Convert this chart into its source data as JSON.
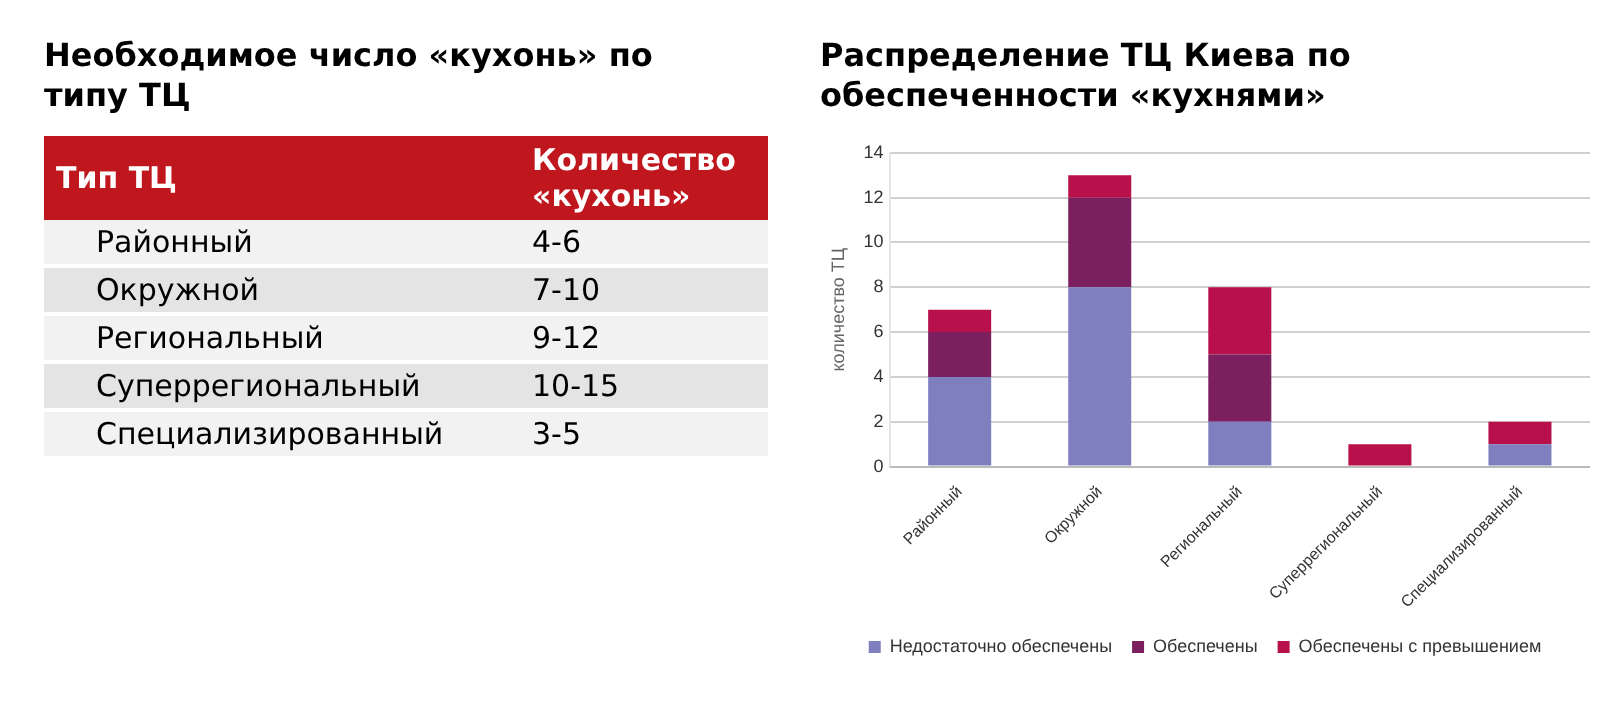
{
  "chart_data": [
    {
      "type": "other",
      "title": "Необходимое число «кухонь» по типу ТЦ",
      "xlabel": "Тип ТЦ",
      "ylabel": "Количество «кухонь»",
      "categories": [
        "Районный",
        "Окружной",
        "Региональный",
        "Суперрегиональный",
        "Специализированный"
      ],
      "value_labels": [
        "4-6",
        "7-10",
        "9-12",
        "10-15",
        "3-5"
      ]
    },
    {
      "type": "bar",
      "stacked": true,
      "title": "Распределение ТЦ Киева по обеспеченности «кухнями»",
      "ylabel": "количество ТЦ",
      "categories": [
        "Районный",
        "Окружной",
        "Региональный",
        "Суперрегиональный",
        "Специализированный"
      ],
      "series": [
        {
          "name": "Недостаточно обеспечены",
          "color": "#7f7fbf",
          "values": [
            4,
            8,
            2,
            0,
            1
          ]
        },
        {
          "name": "Обеспечены",
          "color": "#7b1f5f",
          "values": [
            2,
            4,
            3,
            0,
            0
          ]
        },
        {
          "name": "Обеспечены с превышением",
          "color": "#b8104a",
          "values": [
            1,
            1,
            3,
            1,
            1
          ]
        }
      ],
      "ylim": [
        0,
        14
      ],
      "yticks": [
        0,
        2,
        4,
        6,
        8,
        10,
        12,
        14
      ],
      "grid": "y",
      "legend": "bottom"
    }
  ]
}
